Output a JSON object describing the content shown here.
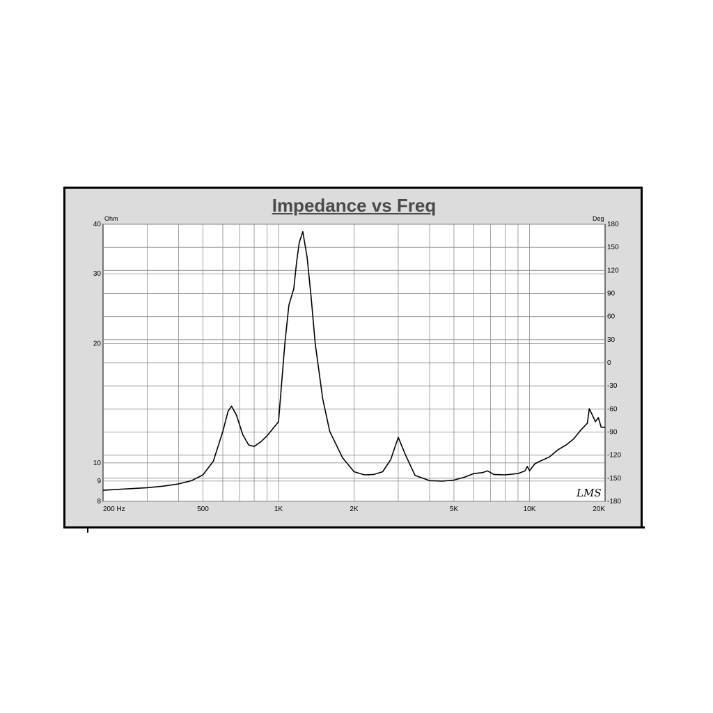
{
  "chart_data": {
    "type": "line",
    "title": "Impedance vs Freq",
    "left_axis_unit": "Ohm",
    "right_axis_unit": "Deg",
    "x_scale": "log",
    "xlim": [
      200,
      20000
    ],
    "ylim_left": [
      8,
      40
    ],
    "y_scale_left": "log",
    "ylim_right": [
      -180,
      180
    ],
    "grid": true,
    "x_ticks": [
      {
        "value": 200,
        "label": "200  Hz"
      },
      {
        "value": 500,
        "label": "500"
      },
      {
        "value": 1000,
        "label": "1K"
      },
      {
        "value": 2000,
        "label": "2K"
      },
      {
        "value": 5000,
        "label": "5K"
      },
      {
        "value": 10000,
        "label": "10K"
      },
      {
        "value": 20000,
        "label": "20K"
      }
    ],
    "left_ticks": [
      {
        "value": 8,
        "label": "8"
      },
      {
        "value": 9,
        "label": "9"
      },
      {
        "value": 10,
        "label": "10"
      },
      {
        "value": 20,
        "label": "20"
      },
      {
        "value": 30,
        "label": "30"
      },
      {
        "value": 40,
        "label": "40"
      }
    ],
    "right_ticks": [
      {
        "value": 180,
        "label": "180"
      },
      {
        "value": 150,
        "label": "150"
      },
      {
        "value": 120,
        "label": "120"
      },
      {
        "value": 90,
        "label": "90"
      },
      {
        "value": 60,
        "label": "60"
      },
      {
        "value": 30,
        "label": "30"
      },
      {
        "value": 0,
        "label": "0"
      },
      {
        "value": -30,
        "label": "-30"
      },
      {
        "value": -60,
        "label": "-60"
      },
      {
        "value": -90,
        "label": "-90"
      },
      {
        "value": -120,
        "label": "-120"
      },
      {
        "value": -150,
        "label": "-150"
      },
      {
        "value": -180,
        "label": "-180"
      }
    ],
    "series": [
      {
        "color": "#000000",
        "x": [
          200,
          250,
          300,
          350,
          400,
          450,
          500,
          550,
          600,
          630,
          650,
          680,
          720,
          760,
          800,
          850,
          900,
          950,
          1000,
          1060,
          1100,
          1150,
          1180,
          1210,
          1250,
          1300,
          1350,
          1400,
          1500,
          1600,
          1800,
          2000,
          2200,
          2400,
          2600,
          2800,
          3000,
          3200,
          3500,
          4000,
          4500,
          5000,
          5500,
          6000,
          6500,
          6800,
          7200,
          8000,
          9000,
          9600,
          9800,
          10000,
          10500,
          11000,
          12000,
          13000,
          14000,
          15000,
          16000,
          17000,
          17300,
          17800,
          18300,
          18800,
          19300,
          20000
        ],
        "y": [
          8.53,
          8.6,
          8.66,
          8.74,
          8.85,
          9.02,
          9.33,
          10.1,
          12.0,
          13.5,
          13.9,
          13.2,
          11.8,
          11.1,
          11.0,
          11.3,
          11.7,
          12.2,
          12.7,
          20.0,
          25.0,
          27.5,
          32.0,
          36.0,
          38.3,
          33.0,
          26.0,
          20.0,
          14.5,
          12.0,
          10.3,
          9.5,
          9.33,
          9.35,
          9.5,
          10.2,
          11.6,
          10.5,
          9.3,
          9.02,
          9.0,
          9.05,
          9.2,
          9.4,
          9.45,
          9.55,
          9.35,
          9.33,
          9.4,
          9.55,
          9.8,
          9.55,
          9.95,
          10.1,
          10.35,
          10.8,
          11.1,
          11.5,
          12.1,
          12.6,
          13.7,
          13.2,
          12.7,
          13.0,
          12.3,
          12.3
        ]
      }
    ],
    "annotations": [
      {
        "text": "LMS",
        "x": 16500,
        "y": 8.4
      }
    ]
  }
}
